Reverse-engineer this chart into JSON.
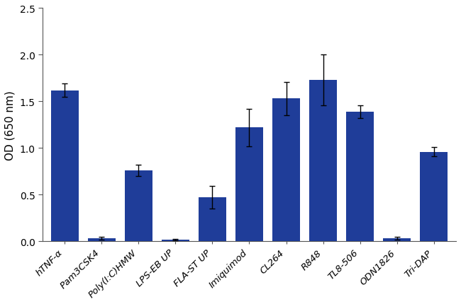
{
  "categories": [
    "hTNF-α",
    "Pam3CSK4",
    "Poly(I:C)HMW",
    "LPS-EB UP",
    "FLA-ST UP",
    "Imiquimod",
    "CL264",
    "R848",
    "TL8-506",
    "ODN1826",
    "Tri-DAP"
  ],
  "values": [
    1.62,
    0.03,
    0.76,
    0.015,
    0.47,
    1.22,
    1.53,
    1.73,
    1.39,
    0.03,
    0.96
  ],
  "errors": [
    0.07,
    0.015,
    0.06,
    0.008,
    0.12,
    0.2,
    0.18,
    0.27,
    0.07,
    0.015,
    0.05
  ],
  "bar_color": "#1f3d99",
  "ylabel": "OD (650 nm)",
  "ylim": [
    0,
    2.5
  ],
  "yticks": [
    0.0,
    0.5,
    1.0,
    1.5,
    2.0,
    2.5
  ],
  "ytick_labels": [
    "0.0",
    "0.5",
    "1.0",
    "1.5",
    "2.0",
    "2.5"
  ],
  "bar_width": 0.75,
  "capsize": 3,
  "elinewidth": 1.0,
  "ecapthick": 1.0,
  "xlabel_fontsize": 9.5,
  "ylabel_fontsize": 11,
  "tick_fontsize": 10,
  "figwidth": 6.5,
  "figheight": 4.31,
  "dpi": 100
}
